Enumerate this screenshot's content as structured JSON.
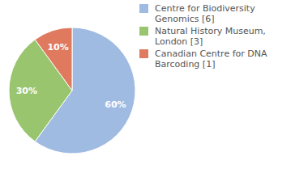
{
  "chart_data": {
    "type": "pie",
    "categories": [
      "Centre for Biodiversity Genomics [6]",
      "Natural History Museum, London [3]",
      "Canadian Centre for DNA Barcoding [1]"
    ],
    "values": [
      60,
      30,
      10
    ],
    "value_labels": [
      "60%",
      "30%",
      "10%"
    ],
    "colors": [
      "#9fbbe2",
      "#9ac56f",
      "#e07a5f"
    ],
    "data_labels": true,
    "legend": "upper right"
  }
}
